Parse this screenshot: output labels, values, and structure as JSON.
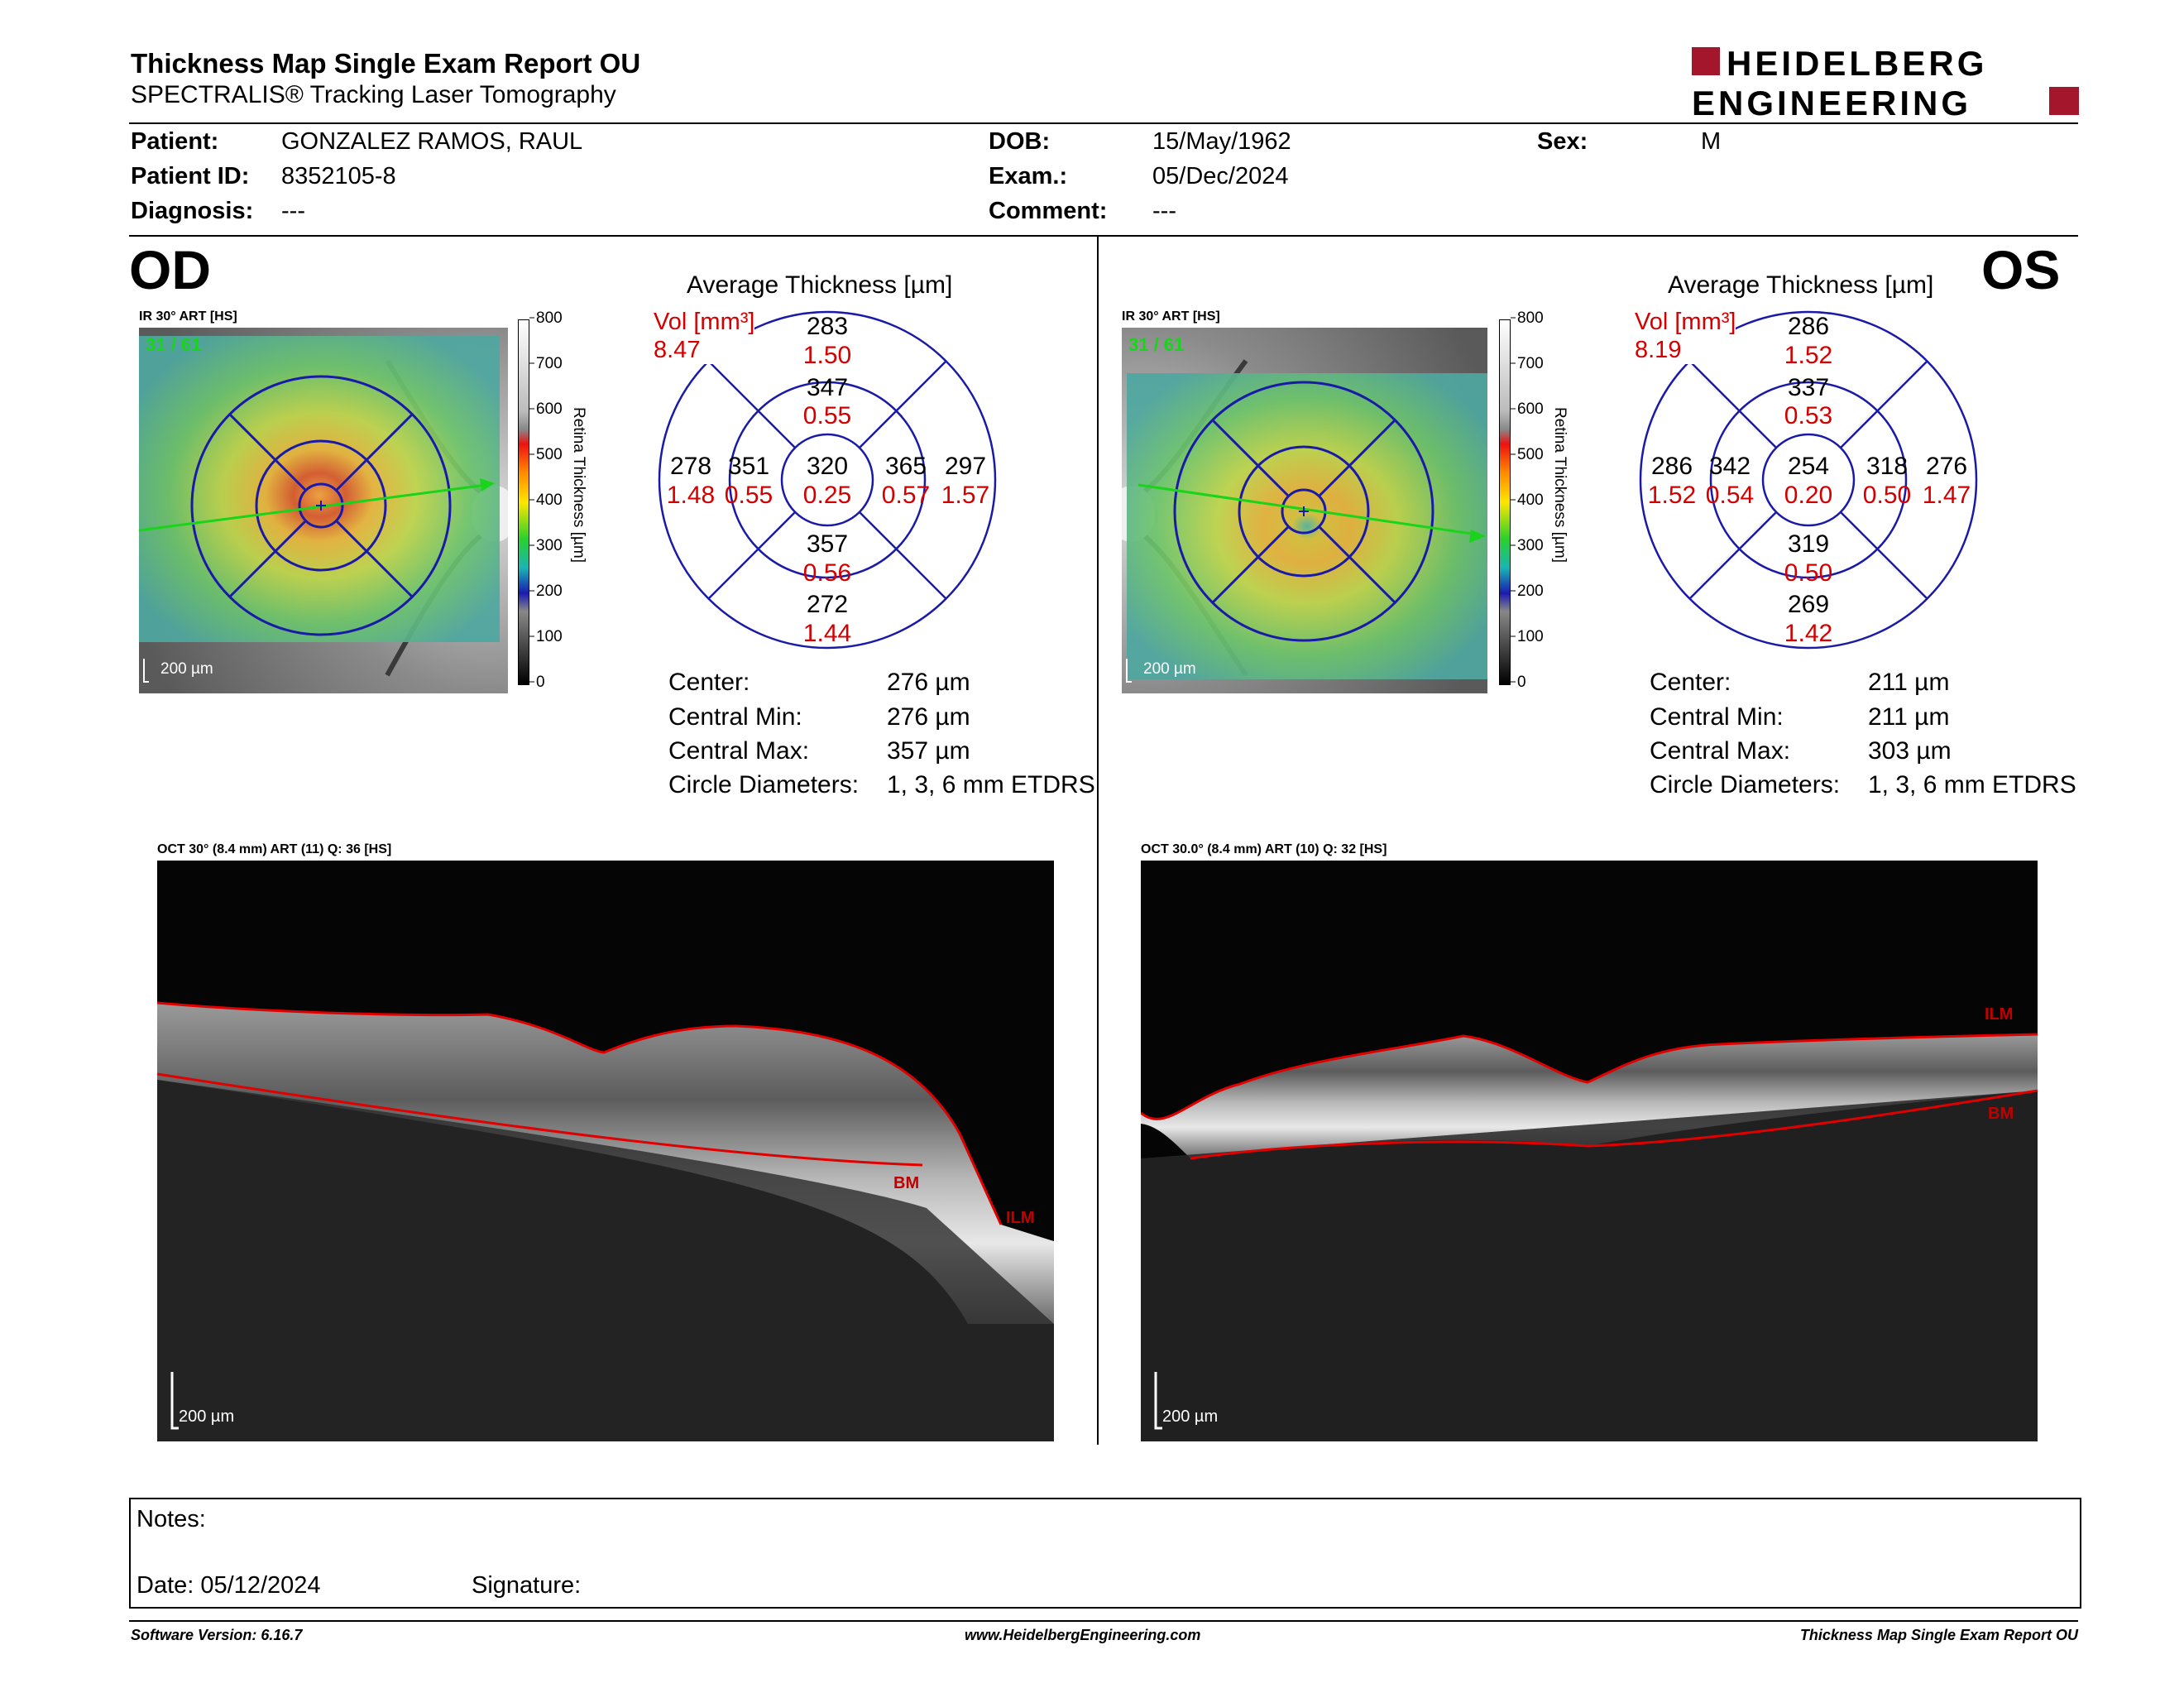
{
  "header": {
    "title": "Thickness Map Single Exam Report OU",
    "subtitle": "SPECTRALIS® Tracking Laser Tomography",
    "logo_line1": "HEIDELBERG",
    "logo_line2": "ENGINEERING",
    "brand_color": "#a4162b"
  },
  "patient": {
    "patient_label": "Patient:",
    "patient_value": "GONZALEZ RAMOS, RAUL",
    "id_label": "Patient ID:",
    "id_value": "8352105-8",
    "diagnosis_label": "Diagnosis:",
    "diagnosis_value": "---",
    "dob_label": "DOB:",
    "dob_value": "15/May/1962",
    "exam_label": "Exam.:",
    "exam_value": "05/Dec/2024",
    "comment_label": "Comment:",
    "comment_value": "---",
    "sex_label": "Sex:",
    "sex_value": "M"
  },
  "od": {
    "eye_label": "OD",
    "ir_label": "IR 30° ART [HS]",
    "frame_count": "31 / 61",
    "ir_scale": "200 µm",
    "colorbar_ticks": [
      "800",
      "700",
      "600",
      "500",
      "400",
      "300",
      "200",
      "100",
      "0"
    ],
    "colorbar_title": "Retina Thickness [µm]",
    "avg_title": "Average Thickness [µm]",
    "vol_label": "Vol [mm³]",
    "vol_value": "8.47",
    "grid": {
      "outer_top": [
        "283",
        "1.50"
      ],
      "inner_top": [
        "347",
        "0.55"
      ],
      "outer_left": [
        "278",
        "1.48"
      ],
      "inner_left": [
        "351",
        "0.55"
      ],
      "center": [
        "320",
        "0.25"
      ],
      "inner_right": [
        "365",
        "0.57"
      ],
      "outer_right": [
        "297",
        "1.57"
      ],
      "inner_bottom": [
        "357",
        "0.56"
      ],
      "outer_bottom": [
        "272",
        "1.44"
      ]
    },
    "stats": {
      "center_label": "Center:",
      "center_value": "276 µm",
      "min_label": "Central Min:",
      "min_value": "276 µm",
      "max_label": "Central Max:",
      "max_value": "357 µm",
      "diam_label": "Circle Diameters:",
      "diam_value": "1, 3, 6 mm ETDRS"
    },
    "oct_label": "OCT 30° (8.4 mm) ART (11) Q: 36 [HS]",
    "oct_scale": "200 µm",
    "layer_ilm": "ILM",
    "layer_bm": "BM"
  },
  "os": {
    "eye_label": "OS",
    "ir_label": "IR 30° ART [HS]",
    "frame_count": "31 / 61",
    "ir_scale": "200 µm",
    "colorbar_ticks": [
      "800",
      "700",
      "600",
      "500",
      "400",
      "300",
      "200",
      "100",
      "0"
    ],
    "colorbar_title": "Retina Thickness [µm]",
    "avg_title": "Average Thickness [µm]",
    "vol_label": "Vol [mm³]",
    "vol_value": "8.19",
    "grid": {
      "outer_top": [
        "286",
        "1.52"
      ],
      "inner_top": [
        "337",
        "0.53"
      ],
      "outer_left": [
        "286",
        "1.52"
      ],
      "inner_left": [
        "342",
        "0.54"
      ],
      "center": [
        "254",
        "0.20"
      ],
      "inner_right": [
        "318",
        "0.50"
      ],
      "outer_right": [
        "276",
        "1.47"
      ],
      "inner_bottom": [
        "319",
        "0.50"
      ],
      "outer_bottom": [
        "269",
        "1.42"
      ]
    },
    "stats": {
      "center_label": "Center:",
      "center_value": "211 µm",
      "min_label": "Central Min:",
      "min_value": "211 µm",
      "max_label": "Central Max:",
      "max_value": "303 µm",
      "diam_label": "Circle Diameters:",
      "diam_value": "1, 3, 6 mm ETDRS"
    },
    "oct_label": "OCT 30.0° (8.4 mm) ART (10) Q: 32 [HS]",
    "oct_scale": "200 µm",
    "layer_ilm": "ILM",
    "layer_bm": "BM"
  },
  "notes": {
    "notes_label": "Notes:",
    "date_label": "Date: 05/12/2024",
    "signature_label": "Signature:"
  },
  "footer": {
    "software": "Software Version: 6.16.7",
    "website": "www.HeidelbergEngineering.com",
    "report_name": "Thickness Map Single Exam Report OU"
  },
  "colors": {
    "value_red": "#d40000",
    "grid_blue": "#1a1aa8",
    "ilm_line": "#e00000"
  }
}
